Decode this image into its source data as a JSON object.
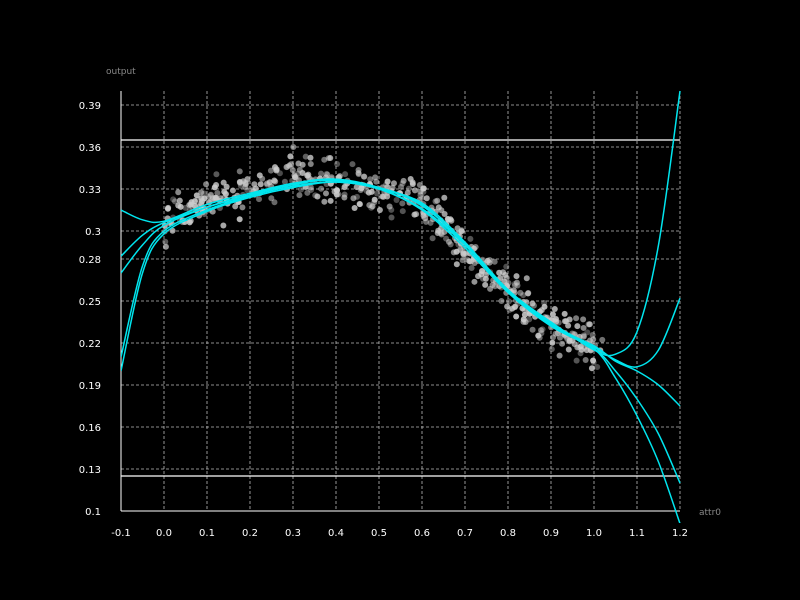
{
  "chart_data": {
    "type": "scatter",
    "title": "",
    "xlabel": "attr0",
    "ylabel": "output",
    "xlim": [
      -0.1,
      1.2
    ],
    "ylim": [
      0.1,
      0.4
    ],
    "grid": true,
    "x_ticks": [
      "-0.1",
      "0.0",
      "0.1",
      "0.2",
      "0.3",
      "0.4",
      "0.5",
      "0.6",
      "0.7",
      "0.8",
      "0.9",
      "1.0",
      "1.1",
      "1.2"
    ],
    "y_ticks": [
      "0.1",
      "0.13",
      "0.16",
      "0.19",
      "0.22",
      "0.25",
      "0.28",
      "0.3",
      "0.33",
      "0.36",
      "0.39"
    ],
    "y_tick_values": [
      0.1,
      0.13,
      0.16,
      0.19,
      0.22,
      0.25,
      0.28,
      0.3,
      0.33,
      0.36,
      0.39
    ],
    "horizontal_lines": [
      0.365,
      0.125
    ],
    "scatter_trend": {
      "x": [
        0.0,
        0.05,
        0.1,
        0.15,
        0.2,
        0.25,
        0.3,
        0.35,
        0.4,
        0.45,
        0.5,
        0.55,
        0.6,
        0.65,
        0.7,
        0.75,
        0.8,
        0.85,
        0.9,
        0.95,
        1.0
      ],
      "y": [
        0.305,
        0.315,
        0.321,
        0.325,
        0.328,
        0.332,
        0.34,
        0.338,
        0.334,
        0.333,
        0.33,
        0.326,
        0.32,
        0.305,
        0.288,
        0.272,
        0.258,
        0.245,
        0.233,
        0.224,
        0.215
      ],
      "spread": 0.008,
      "n_points": 520
    },
    "series": [
      {
        "x": [
          -0.1,
          -0.05,
          0,
          0.1,
          0.2,
          0.3,
          0.4,
          0.5,
          0.6,
          0.7,
          0.8,
          0.9,
          1.0,
          1.05,
          1.1,
          1.15,
          1.2
        ],
        "y": [
          0.315,
          0.308,
          0.307,
          0.319,
          0.327,
          0.334,
          0.337,
          0.33,
          0.32,
          0.292,
          0.258,
          0.235,
          0.215,
          0.212,
          0.228,
          0.29,
          0.4
        ]
      },
      {
        "x": [
          -0.1,
          -0.05,
          0,
          0.1,
          0.2,
          0.3,
          0.4,
          0.5,
          0.6,
          0.7,
          0.8,
          0.9,
          1.0,
          1.05,
          1.1,
          1.15,
          1.2
        ],
        "y": [
          0.282,
          0.297,
          0.306,
          0.317,
          0.326,
          0.334,
          0.336,
          0.331,
          0.319,
          0.29,
          0.257,
          0.233,
          0.217,
          0.208,
          0.203,
          0.215,
          0.252
        ]
      },
      {
        "x": [
          -0.1,
          -0.05,
          0,
          0.1,
          0.2,
          0.3,
          0.4,
          0.5,
          0.6,
          0.7,
          0.8,
          0.9,
          1.0,
          1.05,
          1.1,
          1.15,
          1.2
        ],
        "y": [
          0.27,
          0.29,
          0.304,
          0.317,
          0.326,
          0.333,
          0.337,
          0.331,
          0.318,
          0.291,
          0.258,
          0.233,
          0.218,
          0.207,
          0.2,
          0.19,
          0.175
        ]
      },
      {
        "x": [
          -0.1,
          -0.05,
          0,
          0.1,
          0.2,
          0.3,
          0.4,
          0.5,
          0.6,
          0.7,
          0.8,
          0.9,
          1.0,
          1.05,
          1.1,
          1.15,
          1.2
        ],
        "y": [
          0.21,
          0.275,
          0.3,
          0.315,
          0.325,
          0.332,
          0.335,
          0.33,
          0.315,
          0.288,
          0.256,
          0.232,
          0.216,
          0.2,
          0.18,
          0.155,
          0.12
        ]
      },
      {
        "x": [
          -0.1,
          -0.05,
          0,
          0.1,
          0.2,
          0.3,
          0.4,
          0.5,
          0.6,
          0.7,
          0.8,
          0.9,
          1.0,
          1.05,
          1.1,
          1.15,
          1.2
        ],
        "y": [
          0.2,
          0.27,
          0.298,
          0.314,
          0.324,
          0.331,
          0.335,
          0.33,
          0.316,
          0.29,
          0.258,
          0.234,
          0.216,
          0.195,
          0.168,
          0.135,
          0.091
        ]
      }
    ],
    "colors": {
      "background": "#000000",
      "grid": "#bbbbbb",
      "fit": "#00e5ee",
      "points": "#cccccc",
      "bounds": "#ffffff"
    }
  }
}
